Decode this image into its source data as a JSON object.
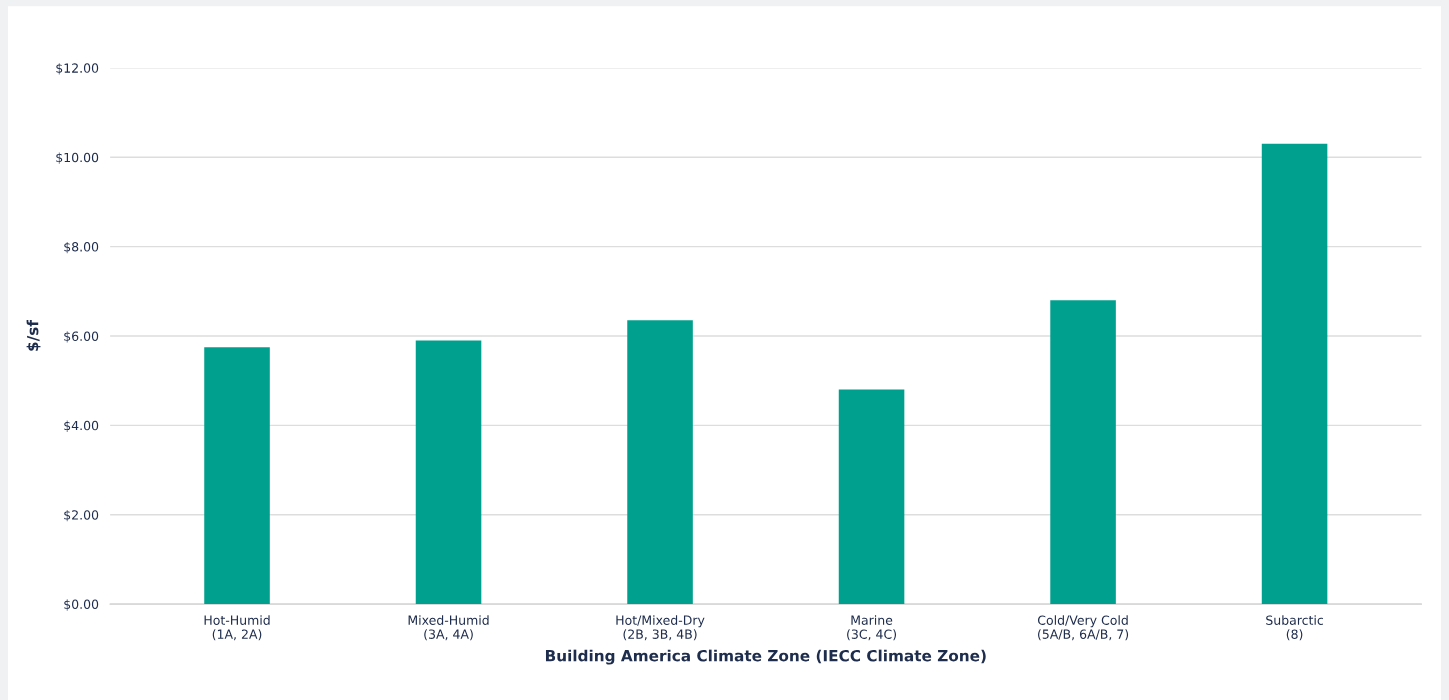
{
  "chart_data": {
    "type": "bar",
    "xlabel": "Building America Climate Zone (IECC Climate Zone)",
    "ylabel": "$/sf",
    "categories": [
      "Hot-Humid\n(1A, 2A)",
      "Mixed-Humid\n(3A, 4A)",
      "Hot/Mixed-Dry\n(2B, 3B, 4B)",
      "Marine\n(3C, 4C)",
      "Cold/Very Cold\n(5A/B, 6A/B, 7)",
      "Subarctic\n(8)"
    ],
    "values": [
      5.75,
      5.9,
      6.35,
      4.8,
      6.8,
      10.3
    ],
    "color": "#00a08e",
    "ylim": [
      0,
      12
    ],
    "yticks": [
      {
        "value": 0,
        "label": "$0.00"
      },
      {
        "value": 2,
        "label": "$2.00"
      },
      {
        "value": 4,
        "label": "$4.00"
      },
      {
        "value": 6,
        "label": "$6.00"
      },
      {
        "value": 8,
        "label": "$8.00"
      },
      {
        "value": 10,
        "label": "$10.00"
      },
      {
        "value": 12,
        "label": "$12.00"
      }
    ],
    "grid": "y",
    "legend": false
  }
}
